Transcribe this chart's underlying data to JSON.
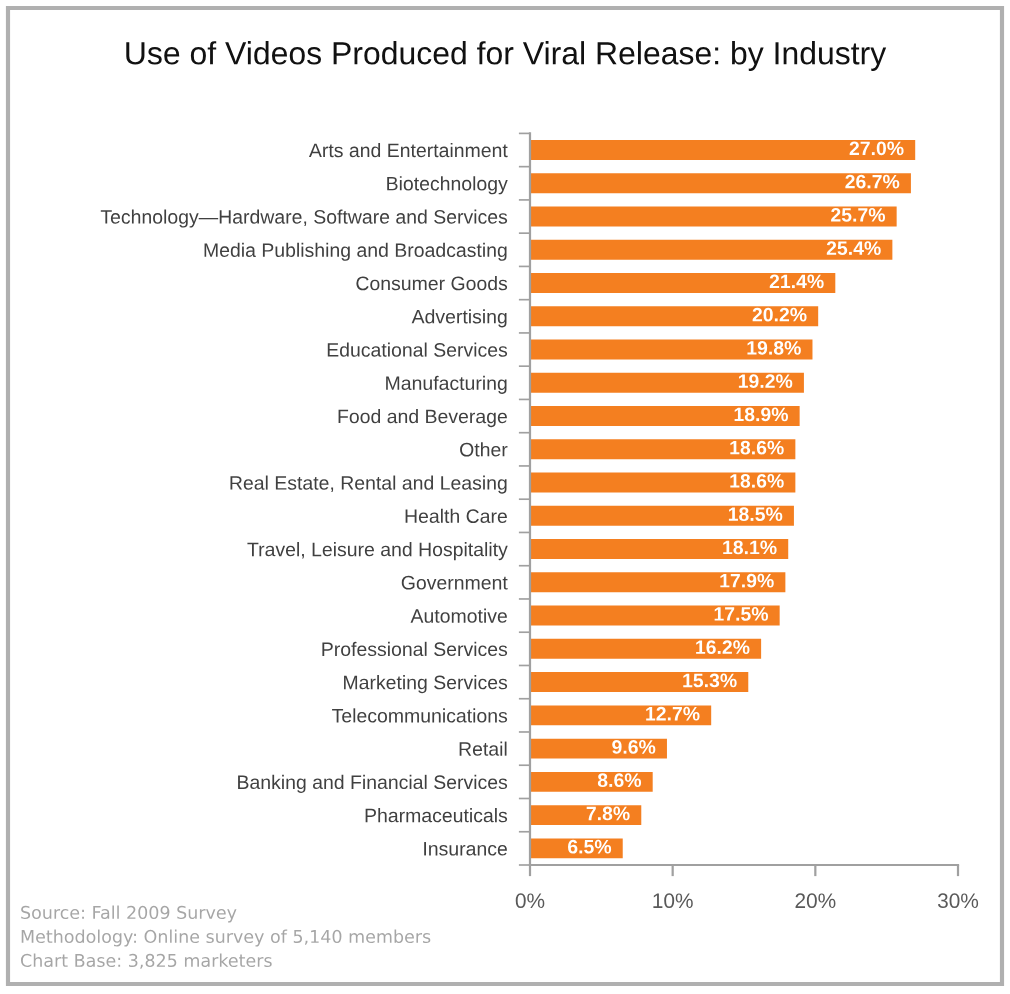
{
  "chart_data": {
    "type": "bar",
    "orientation": "horizontal",
    "title": "Use of Videos Produced for Viral Release: by Industry",
    "categories": [
      "Arts and Entertainment",
      "Biotechnology",
      "Technology—Hardware, Software and Services",
      "Media Publishing and Broadcasting",
      "Consumer Goods",
      "Advertising",
      "Educational Services",
      "Manufacturing",
      "Food and Beverage",
      "Other",
      "Real Estate, Rental and Leasing",
      "Health Care",
      "Travel, Leisure and Hospitality",
      "Government",
      "Automotive",
      "Professional Services",
      "Marketing Services",
      "Telecommunications",
      "Retail",
      "Banking and Financial Services",
      "Pharmaceuticals",
      "Insurance"
    ],
    "values": [
      27.0,
      26.7,
      25.7,
      25.4,
      21.4,
      20.2,
      19.8,
      19.2,
      18.9,
      18.6,
      18.6,
      18.5,
      18.1,
      17.9,
      17.5,
      16.2,
      15.3,
      12.7,
      9.6,
      8.6,
      7.8,
      6.5
    ],
    "value_labels": [
      "27.0%",
      "26.7%",
      "25.7%",
      "25.4%",
      "21.4%",
      "20.2%",
      "19.8%",
      "19.2%",
      "18.9%",
      "18.6%",
      "18.6%",
      "18.5%",
      "18.1%",
      "17.9%",
      "17.5%",
      "16.2%",
      "15.3%",
      "12.7%",
      "9.6%",
      "8.6%",
      "7.8%",
      "6.5%"
    ],
    "color": "#f47f20",
    "xlim": [
      0,
      30
    ],
    "xticks": [
      {
        "value": 0,
        "label": "0%"
      },
      {
        "value": 10,
        "label": "10%"
      },
      {
        "value": 20,
        "label": "20%"
      },
      {
        "value": 30,
        "label": "30%"
      }
    ],
    "grid": false,
    "legend": false,
    "annotations": [
      "Source: Fall 2009 Survey",
      "Methodology: Online survey of 5,140 members",
      "Chart Base: 3,825 marketers"
    ]
  }
}
